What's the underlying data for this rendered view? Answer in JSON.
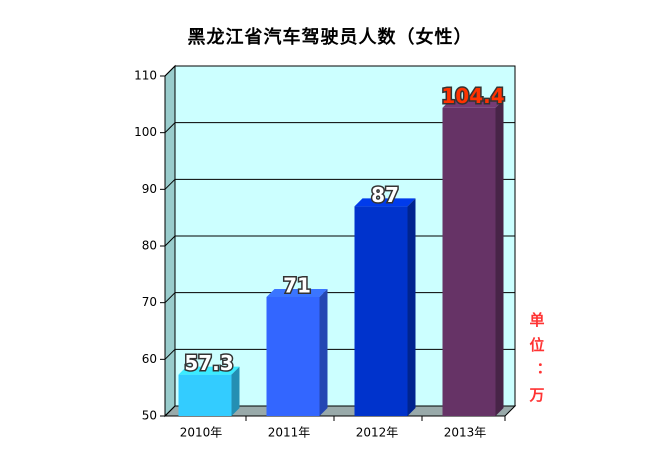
{
  "chart_data": {
    "type": "bar3d",
    "title": "黑龙江省汽车驾驶员人数（女性）",
    "categories": [
      "2010年",
      "2011年",
      "2012年",
      "2013年"
    ],
    "values": [
      57.3,
      71,
      87,
      104.4
    ],
    "colors": [
      "#33ccff",
      "#3366ff",
      "#0033cc",
      "#663366"
    ],
    "value_label_colors": [
      "#ffffff",
      "#ffffff",
      "#ffffff",
      "#ff3300"
    ],
    "ylim": [
      50,
      110
    ],
    "yticks": [
      50,
      60,
      70,
      80,
      90,
      100,
      110
    ],
    "grid": true,
    "unit_label": "单位：万"
  }
}
